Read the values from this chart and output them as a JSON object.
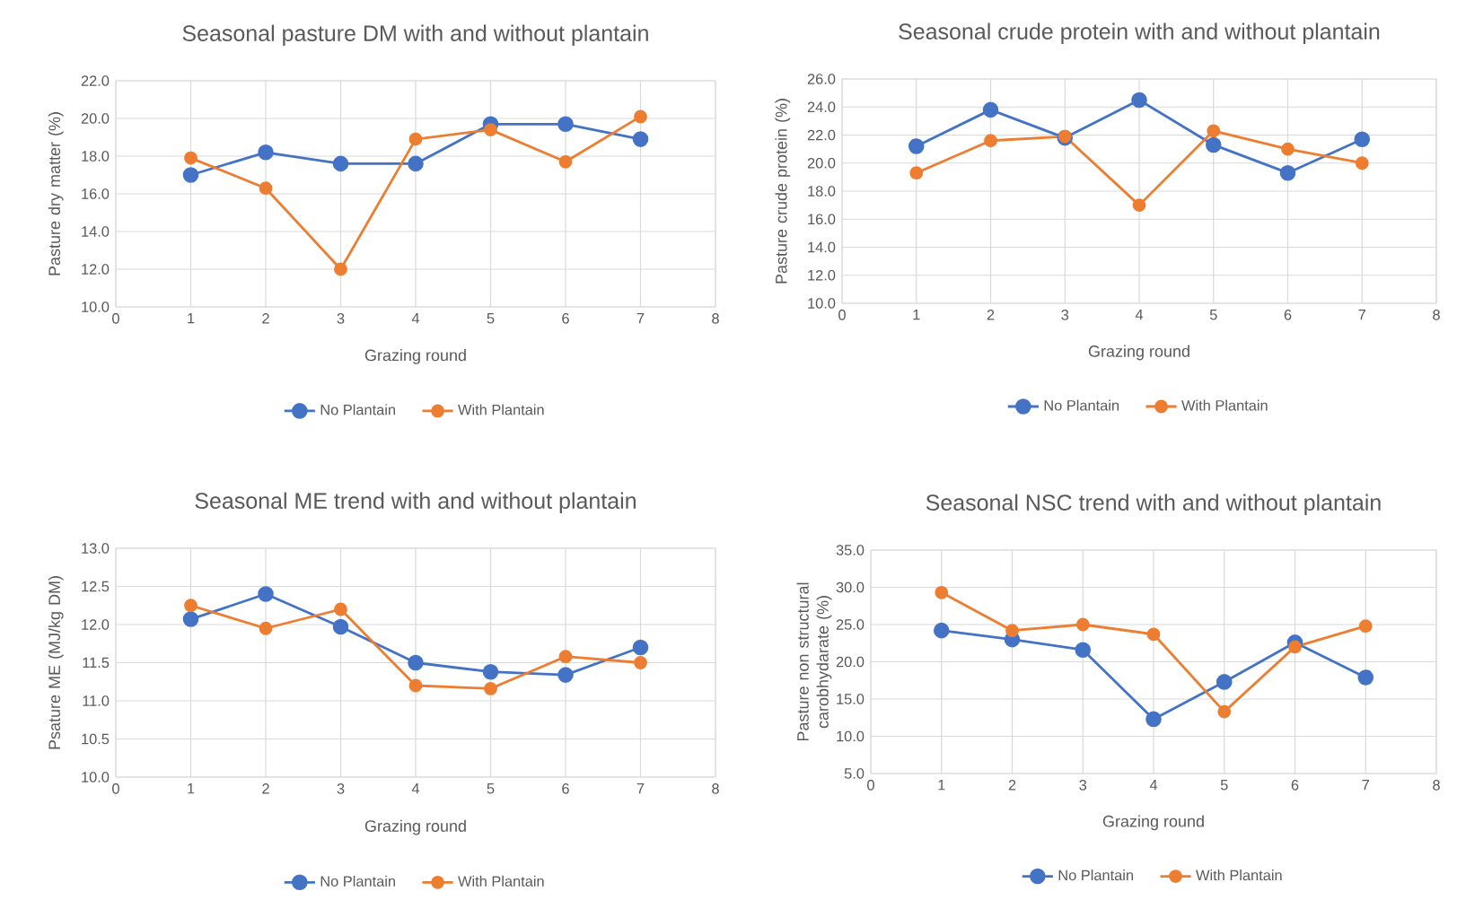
{
  "chart_data": [
    {
      "type": "line",
      "title": "Seasonal pasture DM with and without plantain",
      "xlabel": "Grazing round",
      "ylabel": "Pasture dry matter (%)",
      "x": [
        1,
        2,
        3,
        4,
        5,
        6,
        7
      ],
      "xlim": [
        0,
        8
      ],
      "xticks": [
        0,
        1,
        2,
        3,
        4,
        5,
        6,
        7,
        8
      ],
      "ylim": [
        10,
        22
      ],
      "yticks": [
        {
          "value": 10,
          "label": "10.0"
        },
        {
          "value": 12,
          "label": "12.0"
        },
        {
          "value": 14,
          "label": "14.0"
        },
        {
          "value": 16,
          "label": "16.0"
        },
        {
          "value": 18,
          "label": "18.0"
        },
        {
          "value": 20,
          "label": "20.0"
        },
        {
          "value": 22,
          "label": "22.0"
        }
      ],
      "grid": true,
      "legend": "bottom",
      "marker": "circle",
      "series": [
        {
          "name": "No Plantain",
          "color": "#4472c4",
          "values": [
            17.0,
            18.2,
            17.6,
            17.6,
            19.7,
            19.7,
            18.9
          ]
        },
        {
          "name": "With Plantain",
          "color": "#ed7d31",
          "values": [
            17.9,
            16.3,
            12.0,
            18.9,
            19.4,
            17.7,
            20.1
          ]
        }
      ]
    },
    {
      "type": "line",
      "title": "Seasonal crude protein with and without plantain",
      "xlabel": "Grazing round",
      "ylabel": "Pasture crude protein (%)",
      "x": [
        1,
        2,
        3,
        4,
        5,
        6,
        7
      ],
      "xlim": [
        0,
        8
      ],
      "xticks": [
        0,
        1,
        2,
        3,
        4,
        5,
        6,
        7,
        8
      ],
      "ylim": [
        10,
        26
      ],
      "yticks": [
        {
          "value": 10,
          "label": "10.0"
        },
        {
          "value": 12,
          "label": "12.0"
        },
        {
          "value": 14,
          "label": "14.0"
        },
        {
          "value": 16,
          "label": "16.0"
        },
        {
          "value": 18,
          "label": "18.0"
        },
        {
          "value": 20,
          "label": "20.0"
        },
        {
          "value": 22,
          "label": "22.0"
        },
        {
          "value": 24,
          "label": "24.0"
        },
        {
          "value": 26,
          "label": "26.0"
        }
      ],
      "grid": true,
      "legend": "bottom",
      "marker": "circle",
      "series": [
        {
          "name": "No Plantain",
          "color": "#4472c4",
          "values": [
            21.2,
            23.8,
            21.8,
            24.5,
            21.3,
            19.3,
            21.7
          ]
        },
        {
          "name": "With Plantain",
          "color": "#ed7d31",
          "values": [
            19.3,
            21.6,
            21.9,
            17.0,
            22.3,
            21.0,
            20.0
          ]
        }
      ]
    },
    {
      "type": "line",
      "title": "Seasonal ME trend with and without plantain",
      "xlabel": "Grazing round",
      "ylabel": "Psature ME (MJ/kg DM)",
      "x": [
        1,
        2,
        3,
        4,
        5,
        6,
        7
      ],
      "xlim": [
        0,
        8
      ],
      "xticks": [
        0,
        1,
        2,
        3,
        4,
        5,
        6,
        7,
        8
      ],
      "ylim": [
        10,
        13
      ],
      "yticks": [
        {
          "value": 10,
          "label": "10.0"
        },
        {
          "value": 10.5,
          "label": "10.5"
        },
        {
          "value": 11,
          "label": "11.0"
        },
        {
          "value": 11.5,
          "label": "11.5"
        },
        {
          "value": 12,
          "label": "12.0"
        },
        {
          "value": 12.5,
          "label": "12.5"
        },
        {
          "value": 13,
          "label": "13.0"
        }
      ],
      "grid": true,
      "legend": "bottom",
      "marker": "circle",
      "series": [
        {
          "name": "No Plantain",
          "color": "#4472c4",
          "values": [
            12.07,
            12.4,
            11.97,
            11.5,
            11.38,
            11.34,
            11.7
          ]
        },
        {
          "name": "With Plantain",
          "color": "#ed7d31",
          "values": [
            12.25,
            11.95,
            12.2,
            11.2,
            11.16,
            11.58,
            11.5
          ]
        }
      ]
    },
    {
      "type": "line",
      "title": "Seasonal NSC trend with and without plantain",
      "xlabel": "Grazing round",
      "ylabel": "Pasture non structural carobhydarate (%)",
      "x": [
        1,
        2,
        3,
        4,
        5,
        6,
        7
      ],
      "xlim": [
        0,
        8
      ],
      "xticks": [
        0,
        1,
        2,
        3,
        4,
        5,
        6,
        7,
        8
      ],
      "ylim": [
        5,
        35
      ],
      "yticks": [
        {
          "value": 5,
          "label": "5.0"
        },
        {
          "value": 10,
          "label": "10.0"
        },
        {
          "value": 15,
          "label": "15.0"
        },
        {
          "value": 20,
          "label": "20.0"
        },
        {
          "value": 25,
          "label": "25.0"
        },
        {
          "value": 30,
          "label": "30.0"
        },
        {
          "value": 35,
          "label": "35.0"
        }
      ],
      "grid": true,
      "legend": "bottom",
      "marker": "circle",
      "series": [
        {
          "name": "No Plantain",
          "color": "#4472c4",
          "values": [
            24.2,
            23.0,
            21.6,
            12.3,
            17.3,
            22.6,
            17.9
          ]
        },
        {
          "name": "With Plantain",
          "color": "#ed7d31",
          "values": [
            29.3,
            24.2,
            25.0,
            23.7,
            13.3,
            22.0,
            24.8
          ]
        }
      ]
    }
  ]
}
